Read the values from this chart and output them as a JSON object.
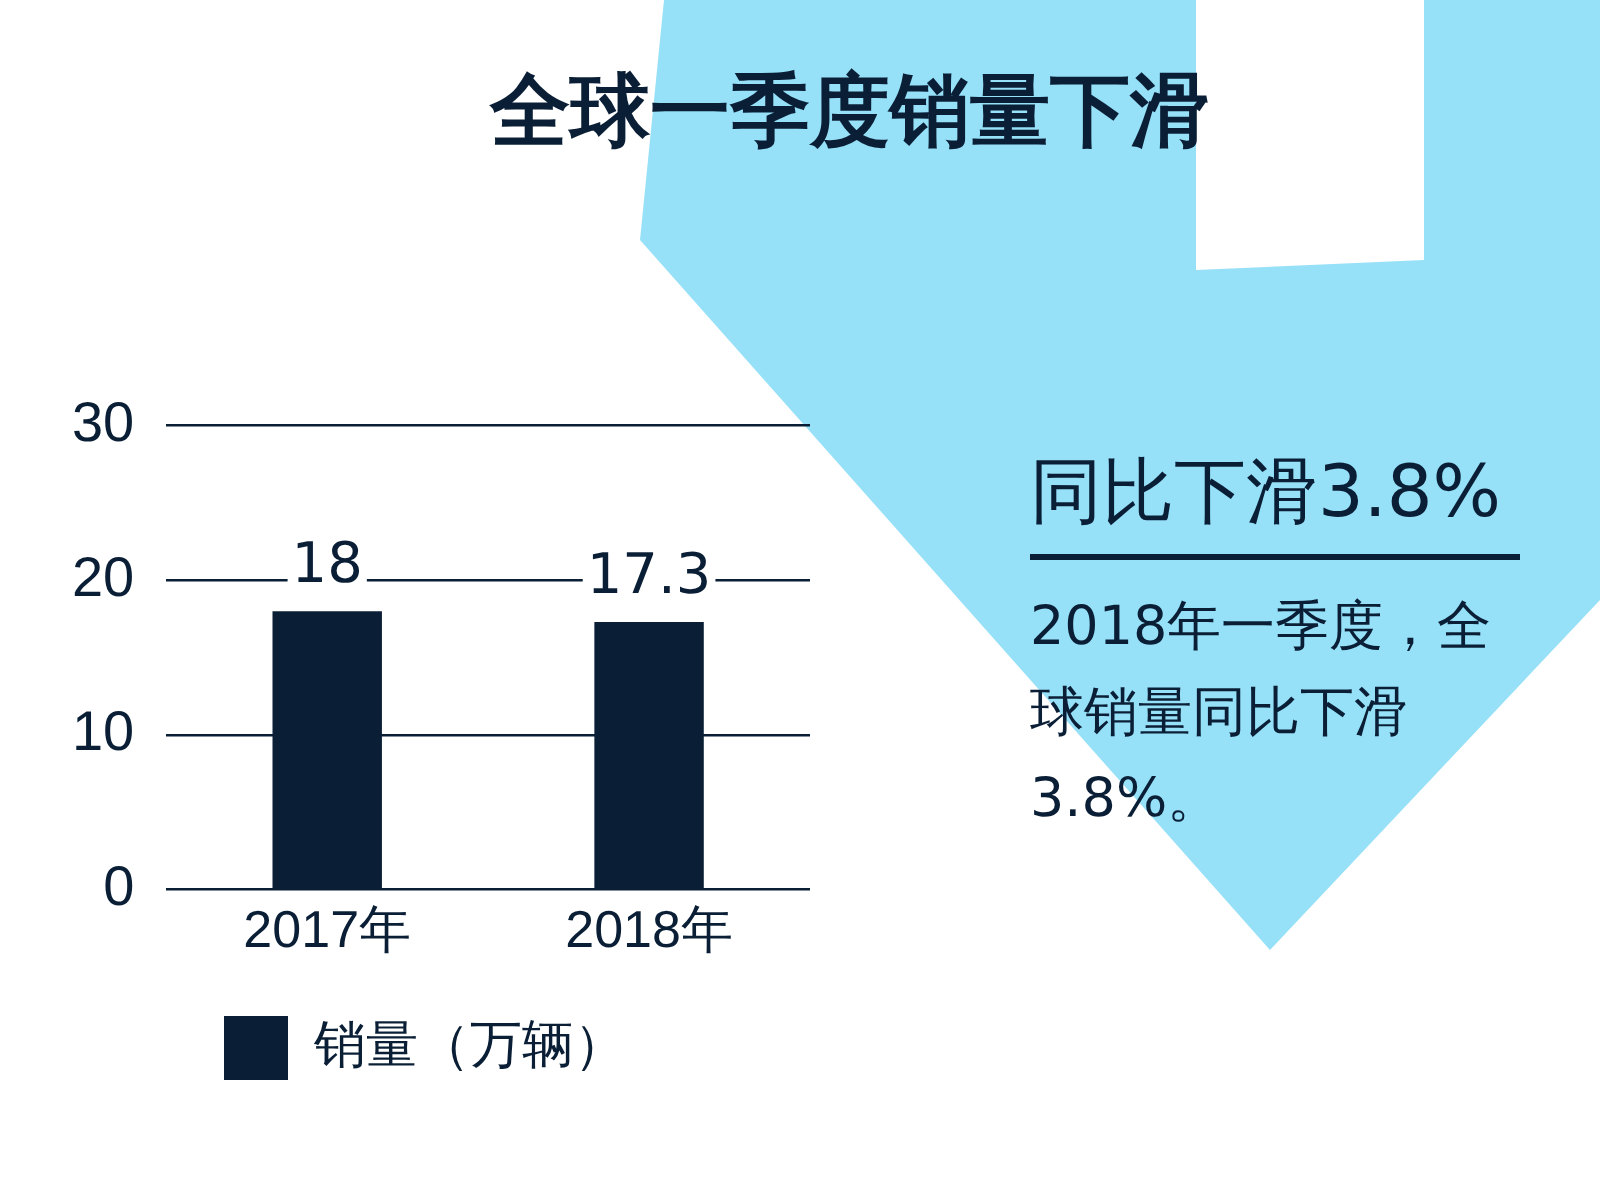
{
  "chart_data": {
    "type": "bar",
    "title": "全球一季度销量下滑",
    "categories": [
      "2017年",
      "2018年"
    ],
    "series": [
      {
        "name": "销量（万辆）",
        "color": "#0a1f36",
        "values": [
          18,
          17.3
        ]
      }
    ],
    "ylim": [
      0,
      30
    ],
    "yticks": [
      0,
      10,
      20,
      30
    ],
    "grid": "y",
    "data_labels": true,
    "legend": "bottom",
    "annotations": [
      "同比下滑3.8%",
      "2018年一季度，全球销量同比下滑3.8%。"
    ]
  }
}
